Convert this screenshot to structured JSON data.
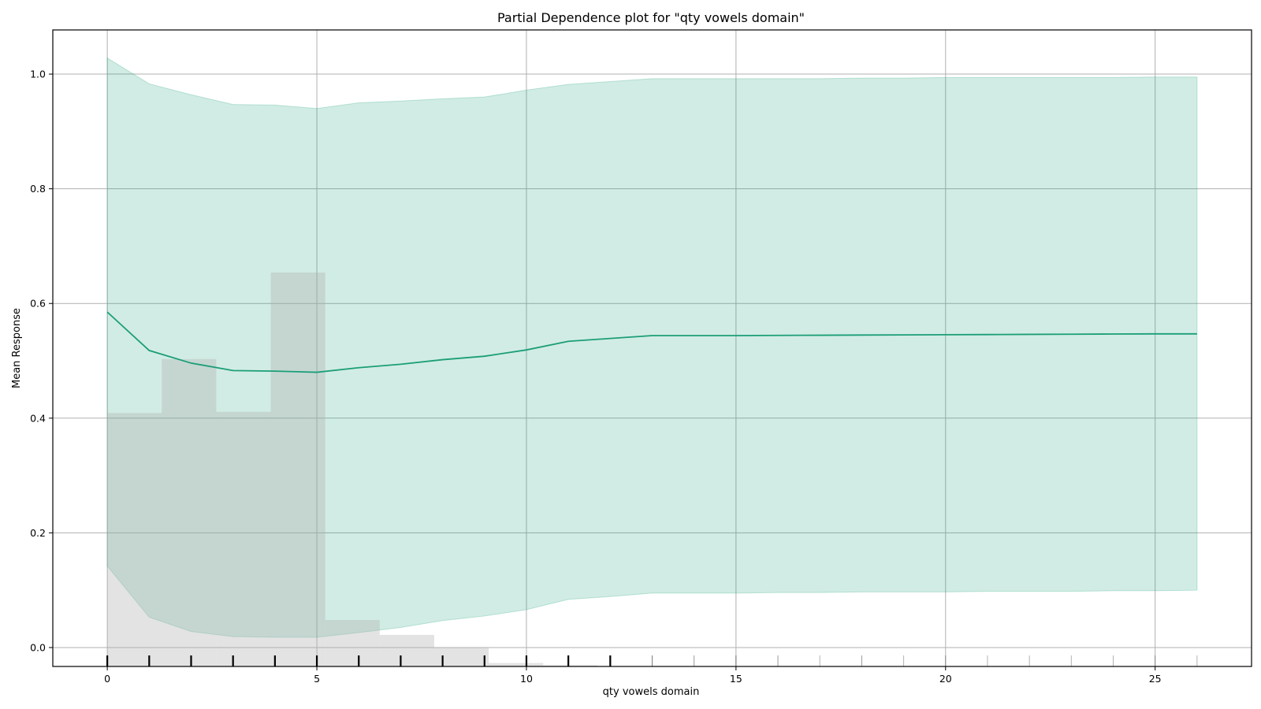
{
  "chart_data": {
    "type": "line",
    "title": "Partial Dependence plot for \"qty vowels domain\"",
    "xlabel": "qty vowels domain",
    "ylabel": "Mean Response",
    "xlim": [
      -1.3,
      27.3
    ],
    "ylim": [
      -0.033,
      1.077
    ],
    "x_ticks": [
      0,
      5,
      10,
      15,
      20,
      25
    ],
    "y_ticks": [
      0.0,
      0.2,
      0.4,
      0.6,
      0.8,
      1.0
    ],
    "x_tick_labels": [
      "0",
      "5",
      "10",
      "15",
      "20",
      "25"
    ],
    "y_tick_labels": [
      "0.0",
      "0.2",
      "0.4",
      "0.6",
      "0.8",
      "1.0"
    ],
    "grid": true,
    "legend": "none",
    "colors": {
      "line": "#1b9e77",
      "band": "#1b9e77",
      "histogram": "#b0b0b0",
      "rug": "#000000"
    },
    "series": [
      {
        "x": [
          0,
          1,
          2,
          3,
          4,
          5,
          6,
          7,
          8,
          9,
          10,
          11,
          12,
          13,
          14,
          15,
          16,
          17,
          18,
          19,
          20,
          21,
          22,
          23,
          24,
          25,
          26
        ],
        "mean": [
          0.585,
          0.518,
          0.496,
          0.483,
          0.482,
          0.48,
          0.488,
          0.494,
          0.502,
          0.508,
          0.519,
          0.534,
          0.539,
          0.544,
          0.544,
          0.544,
          0.5443,
          0.5446,
          0.5449,
          0.5452,
          0.5455,
          0.5458,
          0.5461,
          0.5464,
          0.5467,
          0.547,
          0.547
        ],
        "upper": [
          1.028,
          0.983,
          0.964,
          0.947,
          0.946,
          0.94,
          0.95,
          0.953,
          0.957,
          0.96,
          0.972,
          0.982,
          0.987,
          0.992,
          0.992,
          0.992,
          0.992,
          0.992,
          0.993,
          0.993,
          0.994,
          0.994,
          0.994,
          0.994,
          0.994,
          0.995,
          0.995
        ],
        "lower": [
          0.142,
          0.053,
          0.028,
          0.019,
          0.018,
          0.018,
          0.026,
          0.035,
          0.047,
          0.055,
          0.066,
          0.084,
          0.089,
          0.095,
          0.095,
          0.095,
          0.096,
          0.096,
          0.097,
          0.097,
          0.097,
          0.098,
          0.098,
          0.098,
          0.099,
          0.099,
          0.1
        ]
      }
    ],
    "histogram": {
      "bin_edges": [
        0,
        1.3,
        2.6,
        3.9,
        5.2,
        6.5,
        7.8,
        9.1,
        10.4,
        11.7
      ],
      "heights": [
        0.409,
        0.503,
        0.411,
        0.654,
        0.048,
        0.022,
        0.0,
        -0.027,
        -0.031
      ]
    },
    "rug": {
      "x": [
        0,
        1,
        2,
        3,
        4,
        5,
        6,
        7,
        8,
        9,
        10,
        11,
        12,
        13,
        14,
        15,
        16,
        17,
        18,
        19,
        20,
        21,
        22,
        23,
        24,
        25,
        26
      ],
      "weight": [
        1,
        1,
        1,
        1,
        1,
        1,
        1,
        1,
        1,
        1,
        1,
        1,
        1,
        0.5,
        0.4,
        0.4,
        0.4,
        0.3,
        0.4,
        0.3,
        0.3,
        0.3,
        0.3,
        0.3,
        0.3,
        0.3,
        0.3
      ]
    }
  }
}
